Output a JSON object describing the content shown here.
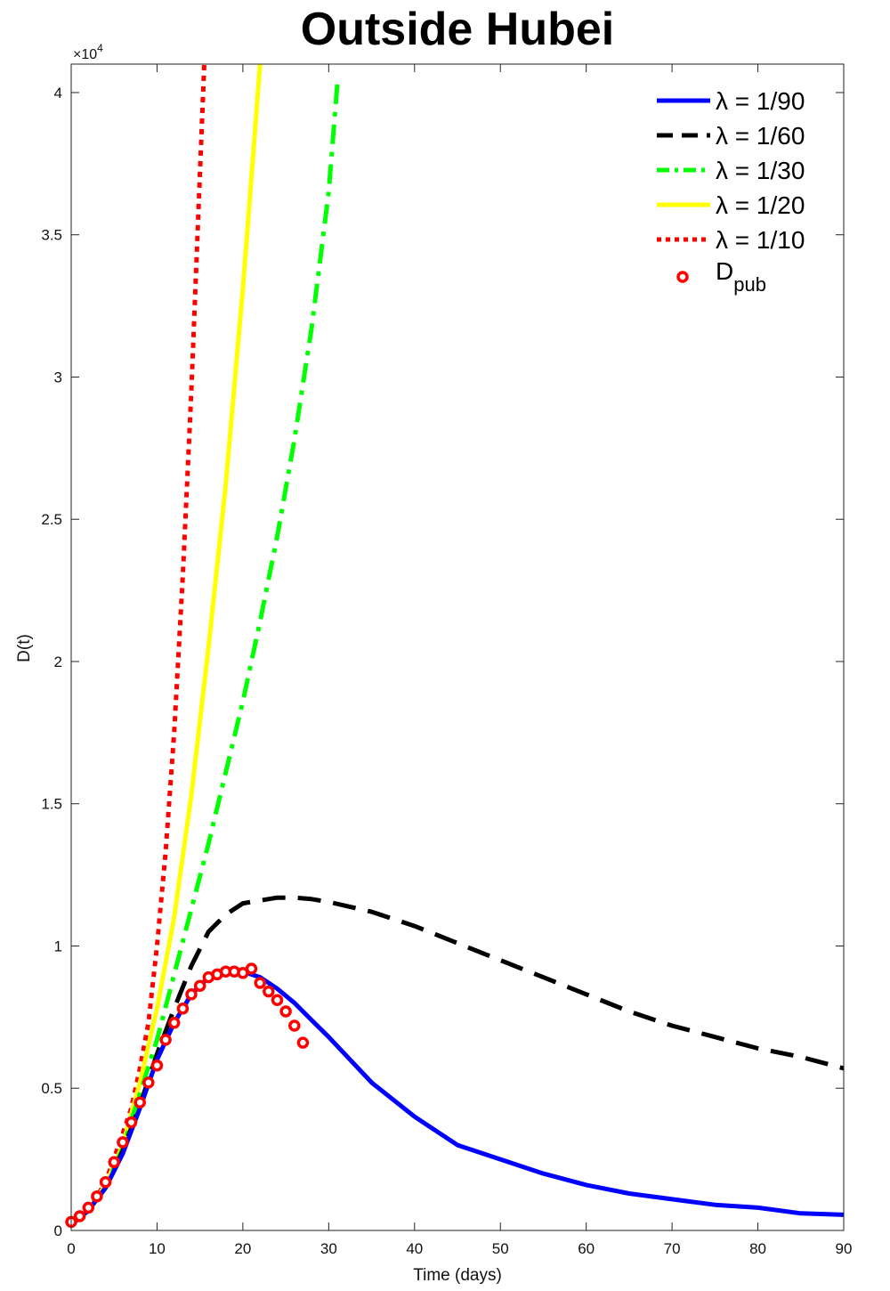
{
  "chart_data": {
    "type": "line",
    "title": "Outside Hubei",
    "xlabel": "Time (days)",
    "ylabel": "D(t)",
    "xlim": [
      0,
      90
    ],
    "ylim": [
      0,
      41000
    ],
    "y_exponent_label": "×10",
    "y_exponent_power": "4",
    "xticks": [
      0,
      10,
      20,
      30,
      40,
      50,
      60,
      70,
      80,
      90
    ],
    "xtick_labels": [
      "0",
      "10",
      "20",
      "30",
      "40",
      "50",
      "60",
      "70",
      "80",
      "90"
    ],
    "yticks": [
      0,
      5000,
      10000,
      15000,
      20000,
      25000,
      30000,
      35000,
      40000
    ],
    "ytick_labels": [
      "0",
      "0.5",
      "1",
      "1.5",
      "2",
      "2.5",
      "3",
      "3.5",
      "4"
    ],
    "grid": false,
    "legend_position": "top-right",
    "series": [
      {
        "name": "λ = 1/90",
        "color": "#0000ff",
        "style": "solid",
        "x": [
          0,
          2,
          4,
          6,
          8,
          10,
          12,
          14,
          16,
          18,
          20,
          22,
          24,
          26,
          28,
          30,
          35,
          40,
          45,
          50,
          55,
          60,
          65,
          70,
          75,
          80,
          85,
          90
        ],
        "y": [
          200,
          700,
          1500,
          2700,
          4300,
          6000,
          7300,
          8300,
          8900,
          9100,
          9100,
          8900,
          8500,
          8000,
          7400,
          6800,
          5200,
          4000,
          3000,
          2500,
          2000,
          1600,
          1300,
          1100,
          900,
          800,
          600,
          550
        ]
      },
      {
        "name": "λ = 1/60",
        "color": "#000000",
        "style": "dashed",
        "x": [
          0,
          2,
          4,
          6,
          8,
          10,
          12,
          14,
          16,
          18,
          20,
          22,
          24,
          26,
          28,
          30,
          35,
          40,
          45,
          50,
          55,
          60,
          65,
          70,
          75,
          80,
          85,
          90
        ],
        "y": [
          200,
          700,
          1500,
          2800,
          4400,
          6200,
          7800,
          9300,
          10500,
          11100,
          11500,
          11600,
          11700,
          11700,
          11650,
          11550,
          11200,
          10700,
          10100,
          9500,
          8900,
          8300,
          7700,
          7200,
          6800,
          6400,
          6100,
          5700
        ]
      },
      {
        "name": "λ = 1/30",
        "color": "#00ff00",
        "style": "dashdot",
        "x": [
          0,
          2,
          4,
          6,
          8,
          10,
          12,
          14,
          16,
          18,
          20,
          22,
          24,
          26,
          28,
          30,
          31
        ],
        "y": [
          200,
          700,
          1500,
          2900,
          4800,
          6700,
          9000,
          11300,
          13600,
          16100,
          18600,
          21400,
          24400,
          27800,
          31700,
          36500,
          40300
        ]
      },
      {
        "name": "λ = 1/20",
        "color": "#ffff00",
        "style": "solid",
        "x": [
          0,
          2,
          4,
          6,
          8,
          10,
          12,
          14,
          16,
          18,
          20,
          21,
          22
        ],
        "y": [
          200,
          700,
          1600,
          3000,
          5200,
          7800,
          11000,
          15300,
          20500,
          26200,
          33100,
          37000,
          41000
        ]
      },
      {
        "name": "λ = 1/10",
        "color": "#ff0000",
        "style": "dotted",
        "x": [
          0,
          2,
          4,
          6,
          7,
          8,
          9,
          10,
          11,
          12,
          13,
          14,
          15,
          15.5
        ],
        "y": [
          200,
          700,
          1700,
          3400,
          4300,
          5700,
          7300,
          10000,
          13300,
          17500,
          23000,
          29500,
          37200,
          41000
        ]
      },
      {
        "name": "D",
        "name_sub": "pub",
        "color": "#ff0000",
        "style": "markers",
        "x": [
          0,
          1,
          2,
          3,
          4,
          5,
          6,
          7,
          8,
          9,
          10,
          11,
          12,
          13,
          14,
          15,
          16,
          17,
          18,
          19,
          20,
          21,
          22,
          23,
          24,
          25,
          26,
          27
        ],
        "y": [
          300,
          500,
          800,
          1200,
          1700,
          2400,
          3100,
          3800,
          4500,
          5200,
          5800,
          6700,
          7300,
          7800,
          8300,
          8600,
          8900,
          9000,
          9100,
          9100,
          9050,
          9200,
          8700,
          8400,
          8100,
          7700,
          7200,
          6600
        ]
      }
    ]
  }
}
